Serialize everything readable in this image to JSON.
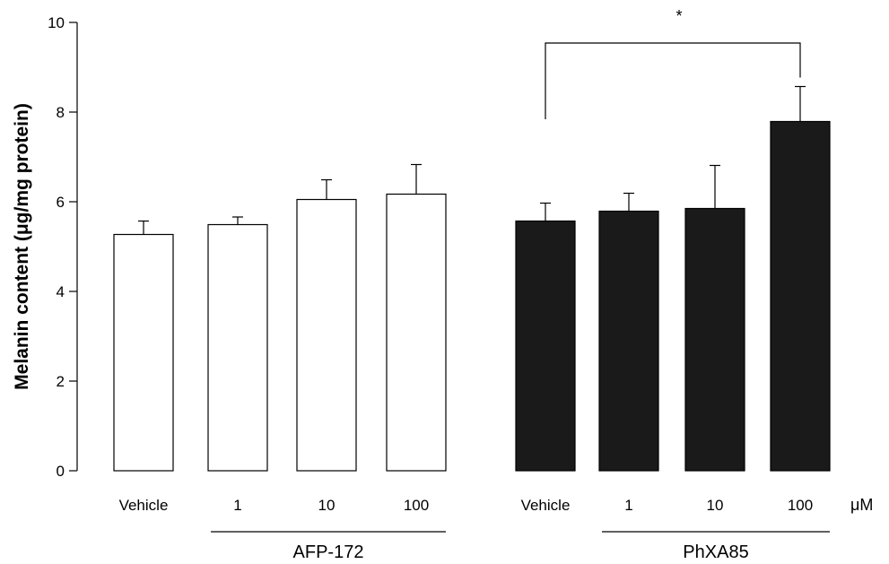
{
  "chart_data": {
    "type": "bar",
    "ylabel": "Melanin content (μg/mg protein)",
    "ylim": [
      0,
      10
    ],
    "yticks": [
      0,
      2,
      4,
      6,
      8,
      10
    ],
    "unit": "μM",
    "grid": false,
    "legend": "none",
    "groups": [
      {
        "name": "AFP-172",
        "fill": "#ffffff",
        "categories": [
          "Vehicle",
          "1",
          "10",
          "100"
        ],
        "values": [
          5.27,
          5.49,
          6.05,
          6.17
        ],
        "errors": [
          0.3,
          0.17,
          0.44,
          0.66
        ]
      },
      {
        "name": "PhXA85",
        "fill": "#1a1a1a",
        "categories": [
          "Vehicle",
          "1",
          "10",
          "100"
        ],
        "values": [
          5.57,
          5.79,
          5.85,
          7.79
        ],
        "errors": [
          0.4,
          0.4,
          0.96,
          0.78
        ]
      }
    ],
    "significance": {
      "label": "*",
      "from": "PhXA85 Vehicle",
      "to": "PhXA85 100"
    }
  }
}
